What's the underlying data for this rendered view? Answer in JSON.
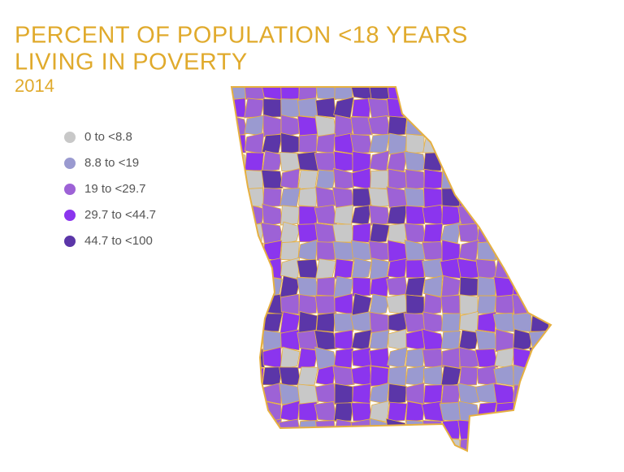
{
  "title_lines": [
    "PERCENT OF POPULATION <18 YEARS",
    "LIVING IN POVERTY"
  ],
  "subtitle": "2014",
  "legend": [
    {
      "label": "0 to <8.8",
      "color": "#c8c8c8"
    },
    {
      "label": "8.8 to <19",
      "color": "#9a9ad0"
    },
    {
      "label": "19 to <29.7",
      "color": "#9d62d6"
    },
    {
      "label": "29.7 to <44.7",
      "color": "#8b35ee"
    },
    {
      "label": "44.7 to <100",
      "color": "#5b36a8"
    }
  ]
}
